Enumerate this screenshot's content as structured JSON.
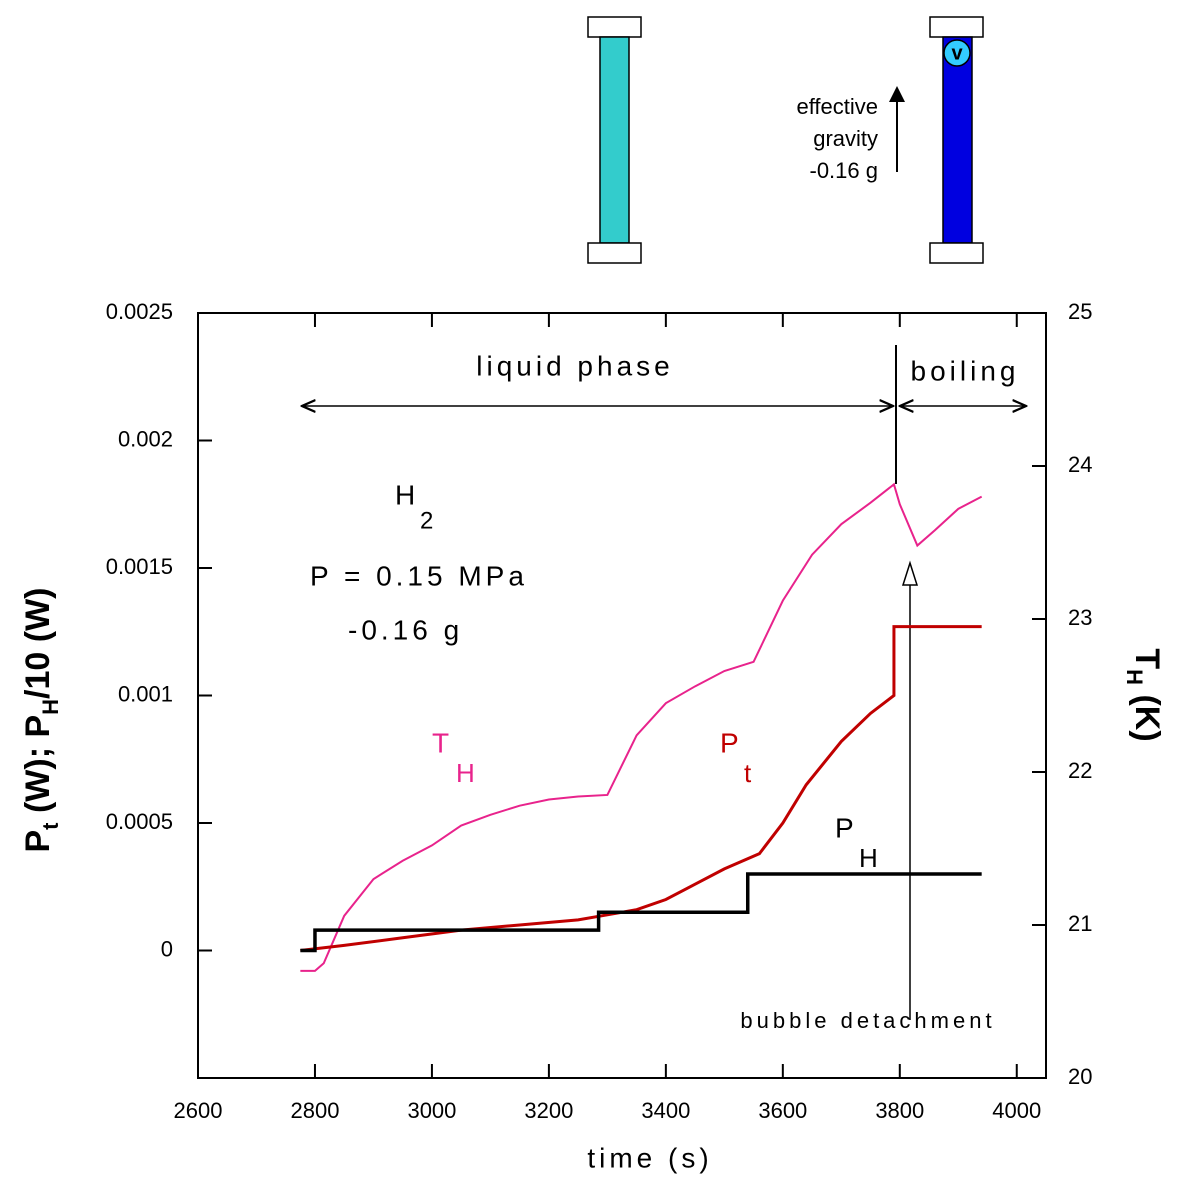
{
  "diagram": {
    "gravity_label": [
      "effective",
      "gravity",
      "-0.16 g"
    ],
    "bubble": "v"
  },
  "chart_data": {
    "type": "line",
    "x_label": "time (s)",
    "y_label_parts": [
      "P",
      "t",
      " (W); P",
      "H",
      "/10 (W)"
    ],
    "y2_label_parts": [
      "T",
      "H",
      " (K)"
    ],
    "annotations": {
      "liquid": "liquid phase",
      "boiling": "boiling",
      "species": "H",
      "species_sub": "2",
      "pressure": "P = 0.15 MPa",
      "gravity": "-0.16 g",
      "bubble": "bubble detachment"
    },
    "xlim": [
      2600,
      4050
    ],
    "xticks": [
      2600,
      2800,
      3000,
      3200,
      3400,
      3600,
      3800,
      4000
    ],
    "ylim": [
      -0.0005,
      0.0025
    ],
    "yticks": [
      0,
      0.0005,
      0.001,
      0.0015,
      0.002,
      0.0025
    ],
    "y2lim": [
      20,
      25
    ],
    "y2ticks": [
      20,
      21,
      22,
      23,
      24,
      25
    ],
    "series": [
      {
        "name": "T",
        "subscript": "H",
        "color": "#e8238c",
        "axis": "y2",
        "x": [
          2775,
          2800,
          2815,
          2850,
          2900,
          2950,
          3000,
          3050,
          3100,
          3150,
          3200,
          3250,
          3300,
          3350,
          3400,
          3450,
          3500,
          3550,
          3600,
          3650,
          3700,
          3750,
          3790,
          3800,
          3830,
          3860,
          3900,
          3940
        ],
        "values": [
          20.7,
          20.7,
          20.75,
          21.06,
          21.3,
          21.42,
          21.52,
          21.65,
          21.72,
          21.78,
          21.82,
          21.84,
          21.85,
          22.24,
          22.45,
          22.56,
          22.66,
          22.72,
          23.12,
          23.42,
          23.62,
          23.76,
          23.88,
          23.75,
          23.48,
          23.58,
          23.72,
          23.8
        ]
      },
      {
        "name": "P",
        "subscript": "t",
        "color": "#c00000",
        "x": [
          2775,
          2850,
          2950,
          3050,
          3150,
          3250,
          3300,
          3350,
          3400,
          3450,
          3500,
          3560,
          3600,
          3640,
          3700,
          3750,
          3790,
          3790,
          3940
        ],
        "values": [
          0,
          2e-05,
          5e-05,
          8e-05,
          0.0001,
          0.00012,
          0.00014,
          0.00016,
          0.0002,
          0.00026,
          0.00032,
          0.00038,
          0.0005,
          0.00065,
          0.00082,
          0.00093,
          0.001,
          0.00127,
          0.00127
        ]
      },
      {
        "name": "P",
        "subscript": "H",
        "color": "#000000",
        "x": [
          2775,
          2800,
          2800,
          3285,
          3285,
          3540,
          3540,
          3940
        ],
        "values": [
          0,
          0,
          8e-05,
          8e-05,
          0.00015,
          0.00015,
          0.0003,
          0.0003
        ]
      }
    ]
  }
}
